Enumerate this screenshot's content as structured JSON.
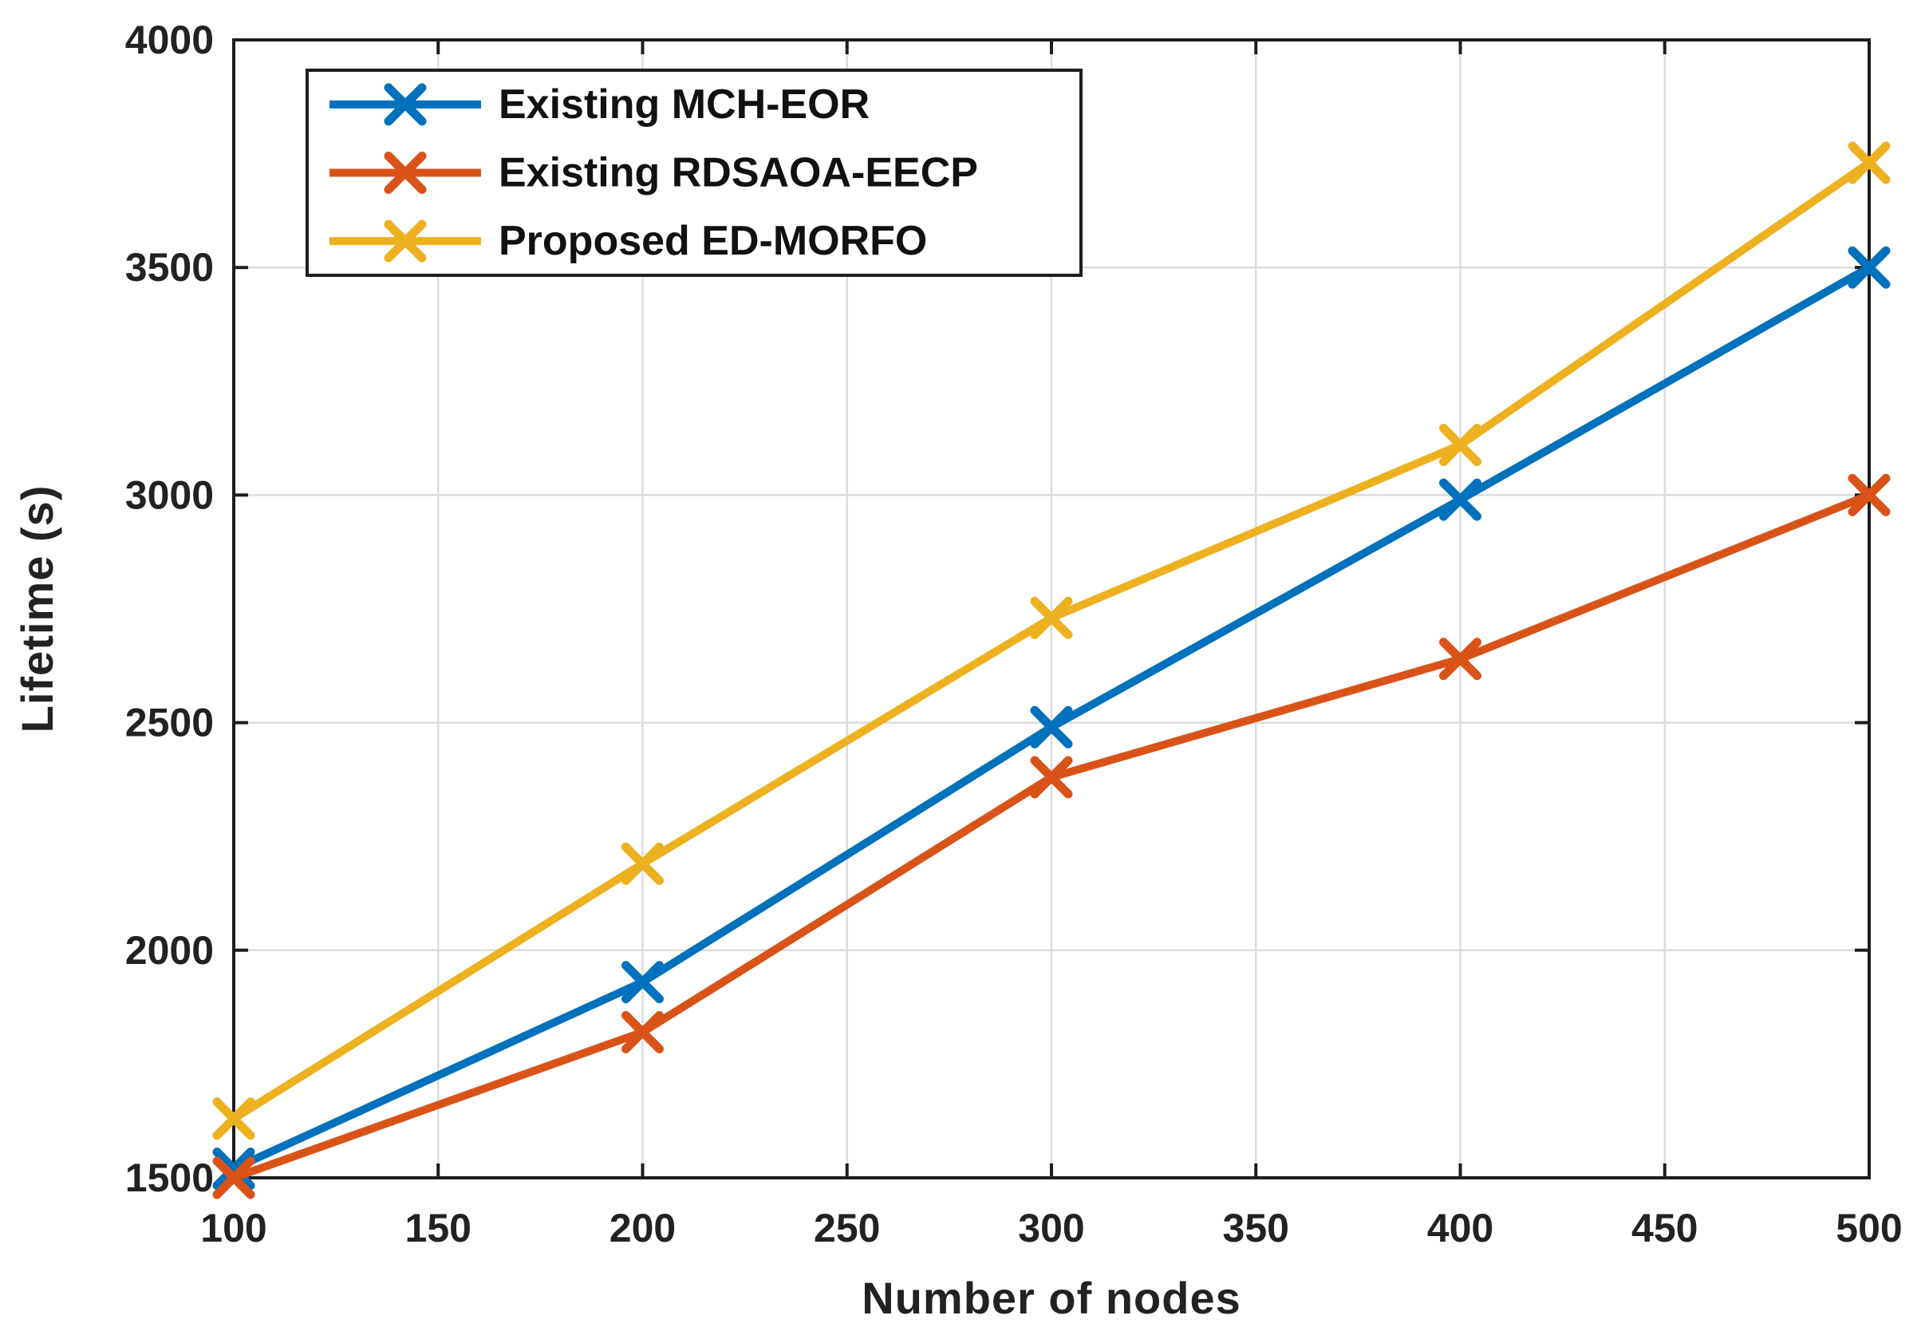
{
  "figure": {
    "background": "#ffffff",
    "axis_color": "#1d1d1d",
    "grid_color": "#dcdcdc",
    "text_color": "#222222",
    "legend_border_color": "#1d1d1d",
    "legend_background": "#ffffff"
  },
  "chart_data": {
    "type": "line",
    "title": "",
    "xlabel": "Number of nodes",
    "ylabel": "Lifetime (s)",
    "x": [
      100,
      200,
      300,
      400,
      500
    ],
    "xlim": [
      100,
      500
    ],
    "ylim": [
      1500,
      4000
    ],
    "x_ticks": [
      100,
      150,
      200,
      250,
      300,
      350,
      400,
      450,
      500
    ],
    "y_ticks": [
      1500,
      2000,
      2500,
      3000,
      3500,
      4000
    ],
    "grid": true,
    "marker": "x",
    "legend_position": "top-left",
    "series": [
      {
        "name": "Existing MCH-EOR",
        "color": "#0072BD",
        "values": [
          1520,
          1930,
          2490,
          2990,
          3500
        ]
      },
      {
        "name": "Existing RDSAOA-EECP",
        "color": "#D95319",
        "values": [
          1500,
          1820,
          2380,
          2640,
          3000
        ]
      },
      {
        "name": "Proposed ED-MORFO",
        "color": "#EDB120",
        "values": [
          1630,
          2190,
          2730,
          3110,
          3730
        ]
      }
    ]
  }
}
